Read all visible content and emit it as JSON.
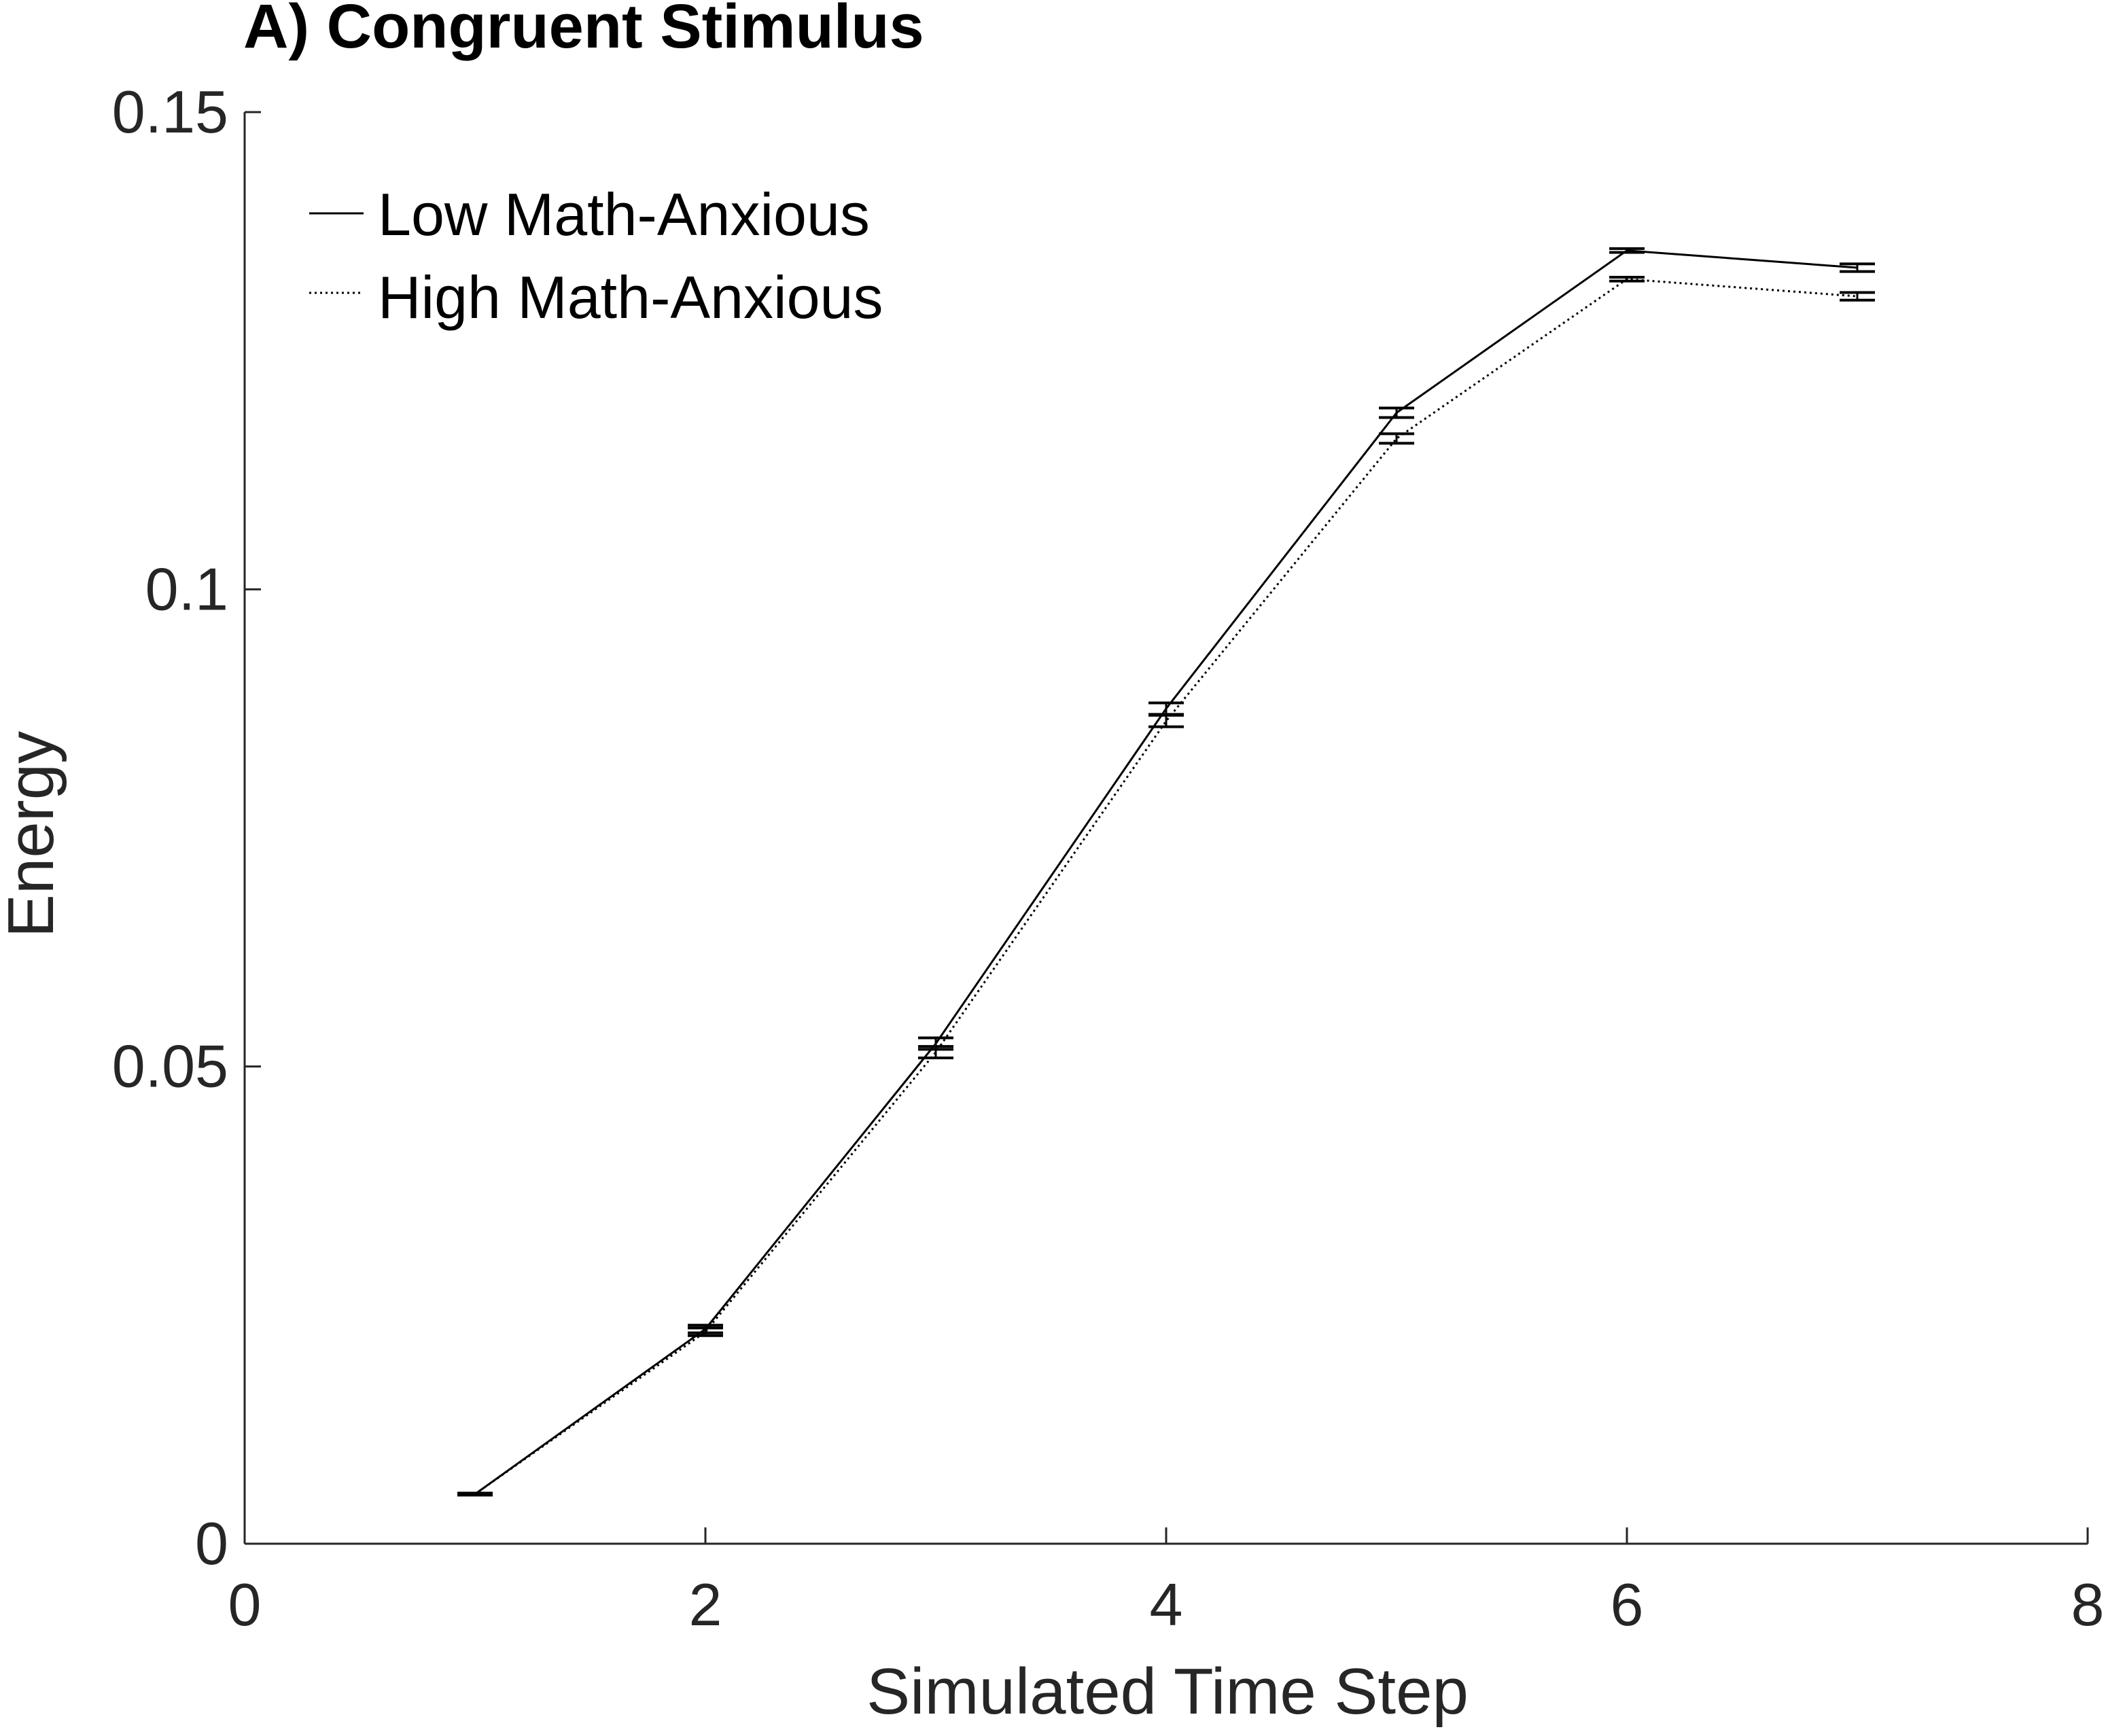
{
  "chart_data": {
    "type": "line",
    "title": "A) Congruent Stimulus",
    "xlabel": "Simulated Time Step",
    "ylabel": "Energy",
    "xlim": [
      0,
      8
    ],
    "ylim": [
      0,
      0.15
    ],
    "xticks": [
      0,
      2,
      4,
      6,
      8
    ],
    "xtick_labels": [
      "0",
      "2",
      "4",
      "6",
      "8"
    ],
    "yticks": [
      0,
      0.05,
      0.1,
      0.15
    ],
    "ytick_labels": [
      "0",
      "0.05",
      "0.1",
      "0.15"
    ],
    "grid": false,
    "legend_position": "top-left",
    "x": [
      1,
      2,
      3,
      4,
      5,
      6,
      7
    ],
    "series": [
      {
        "name": "Low Math-Anxious",
        "line_style": "solid",
        "color": "#000000",
        "values": [
          0.0052,
          0.0225,
          0.0524,
          0.0875,
          0.1185,
          0.1355,
          0.1337
        ],
        "errors": [
          0.0001,
          0.0004,
          0.0006,
          0.0006,
          0.0005,
          0.0002,
          0.0004
        ]
      },
      {
        "name": "High Math-Anxious",
        "line_style": "dotted",
        "color": "#000000",
        "values": [
          0.0052,
          0.0222,
          0.0515,
          0.0862,
          0.1158,
          0.1325,
          0.1307
        ],
        "errors": [
          0.0001,
          0.0004,
          0.0006,
          0.0006,
          0.0005,
          0.0002,
          0.0004
        ]
      }
    ]
  }
}
